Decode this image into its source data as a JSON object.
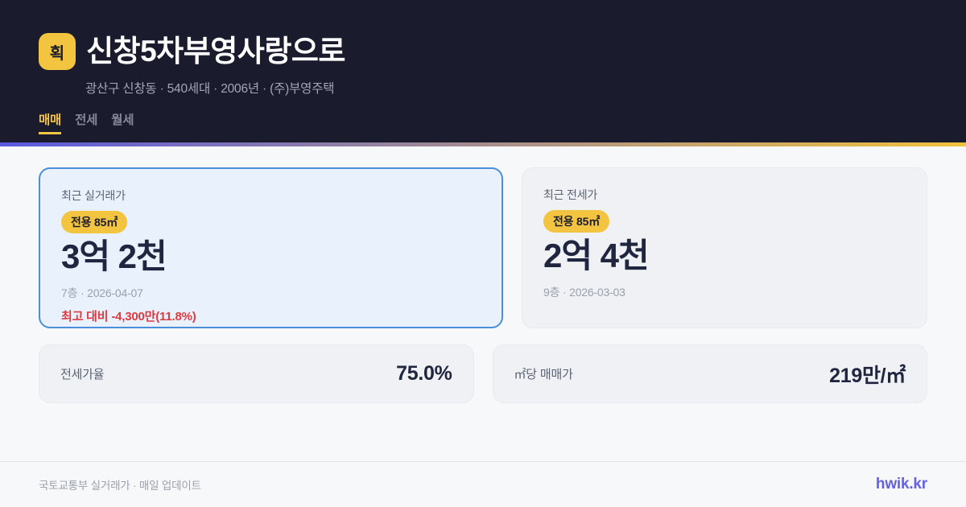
{
  "header": {
    "logo_badge": "획",
    "title": "신창5차부영사랑으로",
    "subtitle": "광산구 신창동 · 540세대 · 2006년 · (주)부영주택",
    "tabs": [
      {
        "label": "매매",
        "active": true
      },
      {
        "label": "전세",
        "active": false
      },
      {
        "label": "월세",
        "active": false
      }
    ]
  },
  "cards": {
    "sale": {
      "label": "최근 실거래가",
      "area_badge": "전용 85㎡",
      "price": "3억 2천",
      "meta": "7층 · 2026-04-07",
      "delta": "최고 대비 -4,300만(11.8%)"
    },
    "jeonse": {
      "label": "최근 전세가",
      "area_badge": "전용 85㎡",
      "price": "2억 4천",
      "meta": "9층 · 2026-03-03"
    }
  },
  "stats": [
    {
      "label": "전세가율",
      "value": "75.0%"
    },
    {
      "label": "㎡당 매매가",
      "value": "219만/㎡"
    }
  ],
  "footer": {
    "source": "국토교통부 실거래가 · 매일 업데이트",
    "brand": "hwik.kr"
  },
  "colors": {
    "header_bg": "#1a1b2d",
    "accent_yellow": "#f3c440",
    "accent_indigo": "#5a5ae0",
    "sale_card_bg": "#e9f2fc",
    "sale_card_border": "#4a8fd7",
    "neutral_card_bg": "#f0f1f4",
    "price_text": "#202640",
    "delta_red": "#e03a40",
    "brand_purple": "#6361e5",
    "body_bg": "#f7f8f9"
  }
}
